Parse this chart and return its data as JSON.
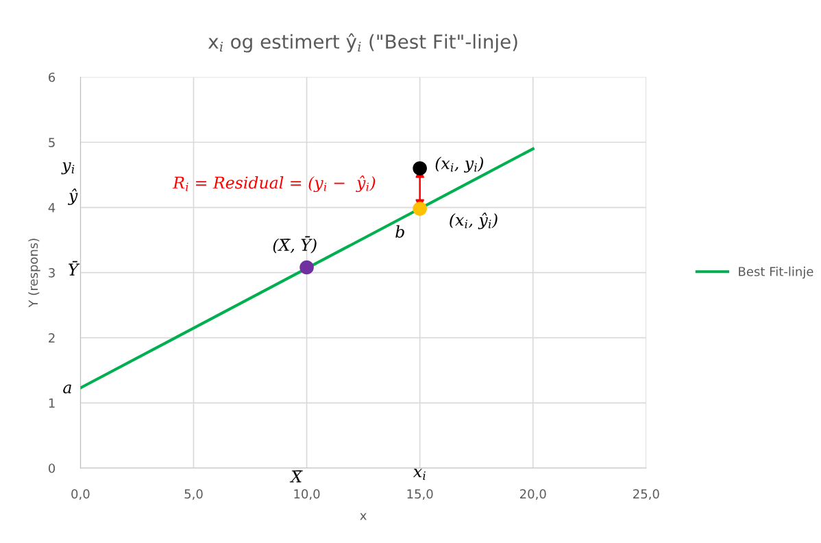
{
  "chart_data": {
    "type": "line",
    "title": "x$_{i}$ og estimert ŷ$_{i}$ (\"Best Fit\"-linje)",
    "xlabel": "x",
    "ylabel": "Y (respons)",
    "xlim": [
      0,
      25
    ],
    "xticks": [
      {
        "value": 0,
        "label": "0,0"
      },
      {
        "value": 5,
        "label": "5,0"
      },
      {
        "value": 10,
        "label": "10,0"
      },
      {
        "value": 15,
        "label": "15,0"
      },
      {
        "value": 20,
        "label": "20,0"
      },
      {
        "value": 25,
        "label": "25,0"
      }
    ],
    "ylim": [
      0,
      6
    ],
    "yticks": [
      0,
      1,
      2,
      3,
      4,
      5,
      6
    ],
    "grid": true,
    "legend": "right",
    "series": [
      {
        "name": "Best Fit-linje",
        "color": "#00b050",
        "x": [
          0,
          20
        ],
        "values": [
          1.23,
          4.9
        ]
      },
      {
        "type": "scatter",
        "color": "#7030a0",
        "x": [
          10
        ],
        "values": [
          3.08
        ],
        "marker": "circle"
      },
      {
        "type": "scatter",
        "color": "#000000",
        "x": [
          15
        ],
        "values": [
          4.6
        ],
        "marker": "circle"
      },
      {
        "type": "scatter",
        "color": "#ffc000",
        "x": [
          15
        ],
        "values": [
          3.98
        ],
        "marker": "circle"
      }
    ],
    "annotations": [
      "R$_{i}$ = Residual = (y$_{i}$ −  ŷ$_{i}$)",
      "(X̄, Ȳ)",
      {
        "text": "(x$_{i}$, y$_{i}$)",
        "x": 15,
        "y": 4.6
      },
      "(x$_{i}$, ŷ$_{i}$)",
      "b",
      "y$_{i}$",
      "ŷ",
      "Ȳ",
      "a",
      "X̄",
      "x$_{i}$"
    ]
  }
}
